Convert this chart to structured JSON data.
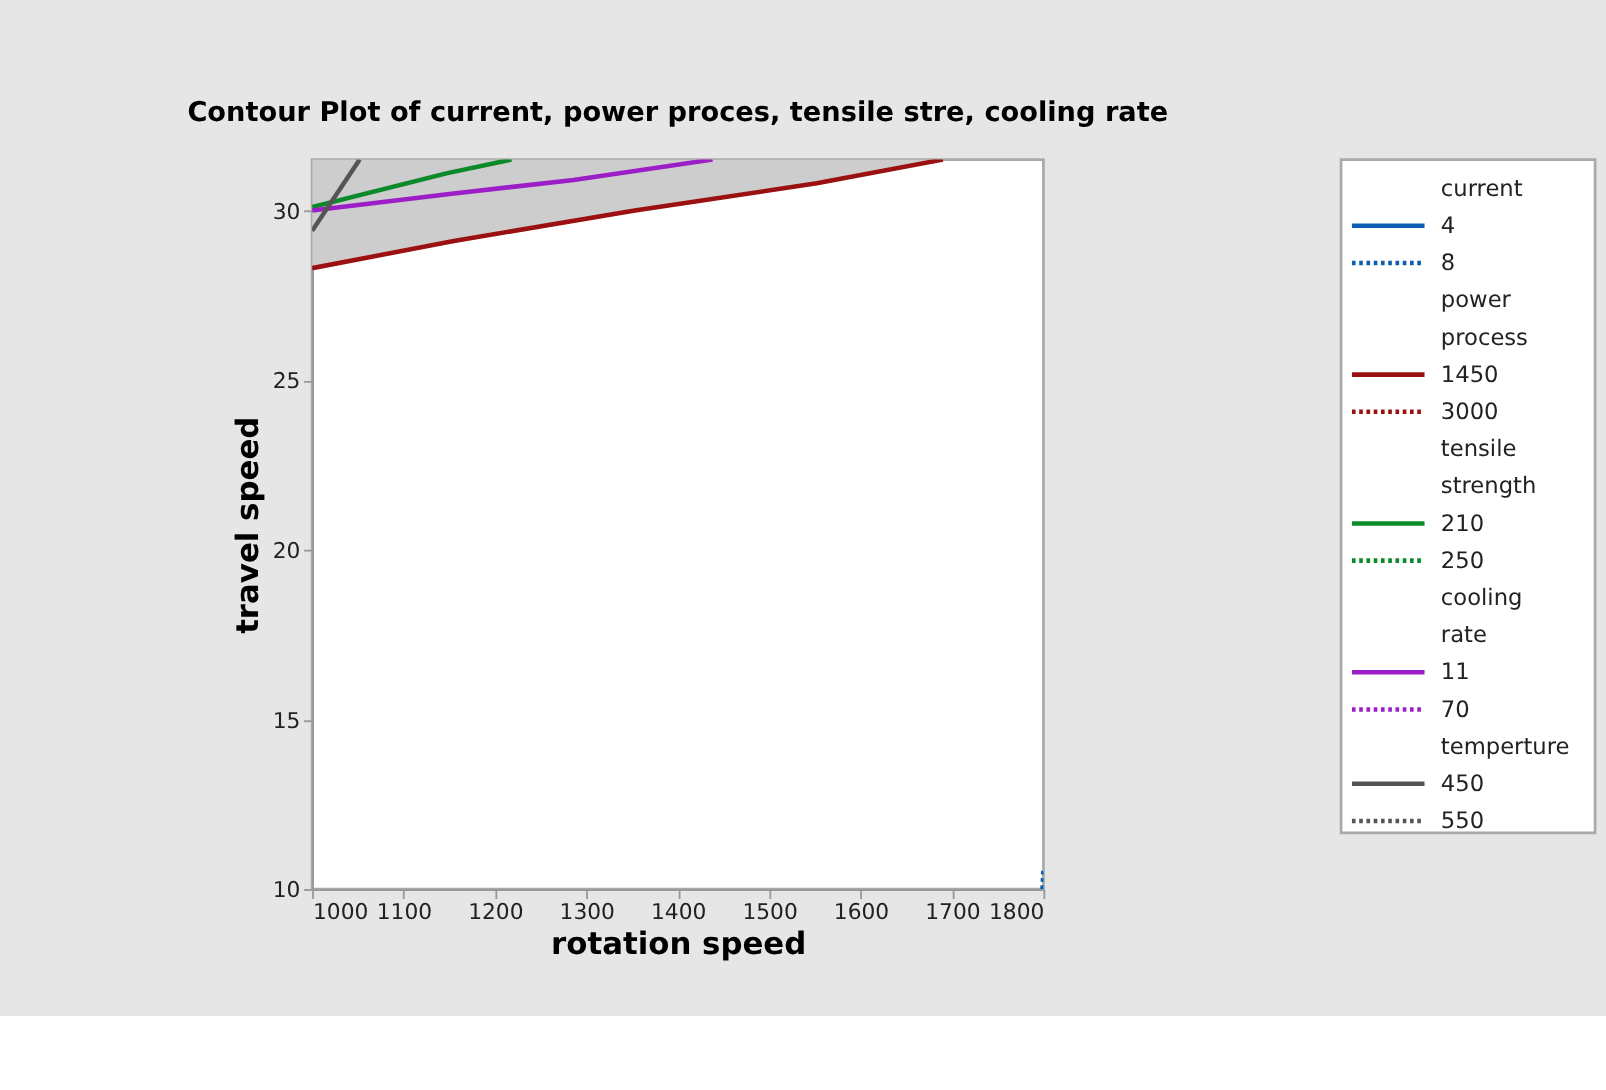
{
  "chart_data": {
    "type": "line",
    "title": "Contour Plot of current, power proces, tensile stre, cooling rate",
    "xlabel": "rotation speed",
    "ylabel": "travel speed",
    "xlim": [
      1000,
      1800
    ],
    "ylim": [
      10,
      31.5
    ],
    "xticks": [
      1000,
      1100,
      1200,
      1300,
      1400,
      1500,
      1600,
      1700,
      1800
    ],
    "yticks": [
      10,
      15,
      20,
      25,
      30
    ],
    "legend": "right",
    "legend_title": [
      "current",
      "power process",
      "tensile strength",
      "cooling rate",
      "temperture"
    ],
    "series": [
      {
        "name": "4",
        "color": "#0b5fae",
        "line_style": "solid"
      },
      {
        "name": "8",
        "color": "#0b5fae",
        "line_style": "dotted",
        "x": [
          1799,
          1800
        ],
        "values": [
          10,
          10.6
        ]
      },
      {
        "name": "1450",
        "color": "#9b1010",
        "line_style": "solid",
        "x": [
          1000,
          1155,
          1353,
          1552,
          1690
        ],
        "values": [
          28.3,
          29.1,
          30.0,
          30.8,
          31.5
        ],
        "lower": [
          28.3,
          29.1,
          30.0,
          30.8,
          31.5
        ],
        "upper": [
          31.5,
          31.5,
          31.5,
          31.5,
          31.5
        ]
      },
      {
        "name": "3000",
        "color": "#9b1010",
        "line_style": "dotted"
      },
      {
        "name": "210",
        "color": "#0b8a2a",
        "line_style": "solid",
        "x": [
          1000,
          1148,
          1218
        ],
        "values": [
          30.1,
          31.1,
          31.5
        ]
      },
      {
        "name": "250",
        "color": "#0b8a2a",
        "line_style": "dotted"
      },
      {
        "name": "11",
        "color": "#9b1ec6",
        "line_style": "solid",
        "x": [
          1000,
          1155,
          1286,
          1438
        ],
        "values": [
          30.0,
          30.5,
          30.9,
          31.5
        ]
      },
      {
        "name": "70",
        "color": "#9b1ec6",
        "line_style": "dotted"
      },
      {
        "name": "450",
        "color": "#555555",
        "line_style": "solid",
        "x": [
          1000,
          1052
        ],
        "values": [
          29.4,
          31.5
        ]
      },
      {
        "name": "550",
        "color": "#555555",
        "line_style": "dotted"
      }
    ]
  }
}
